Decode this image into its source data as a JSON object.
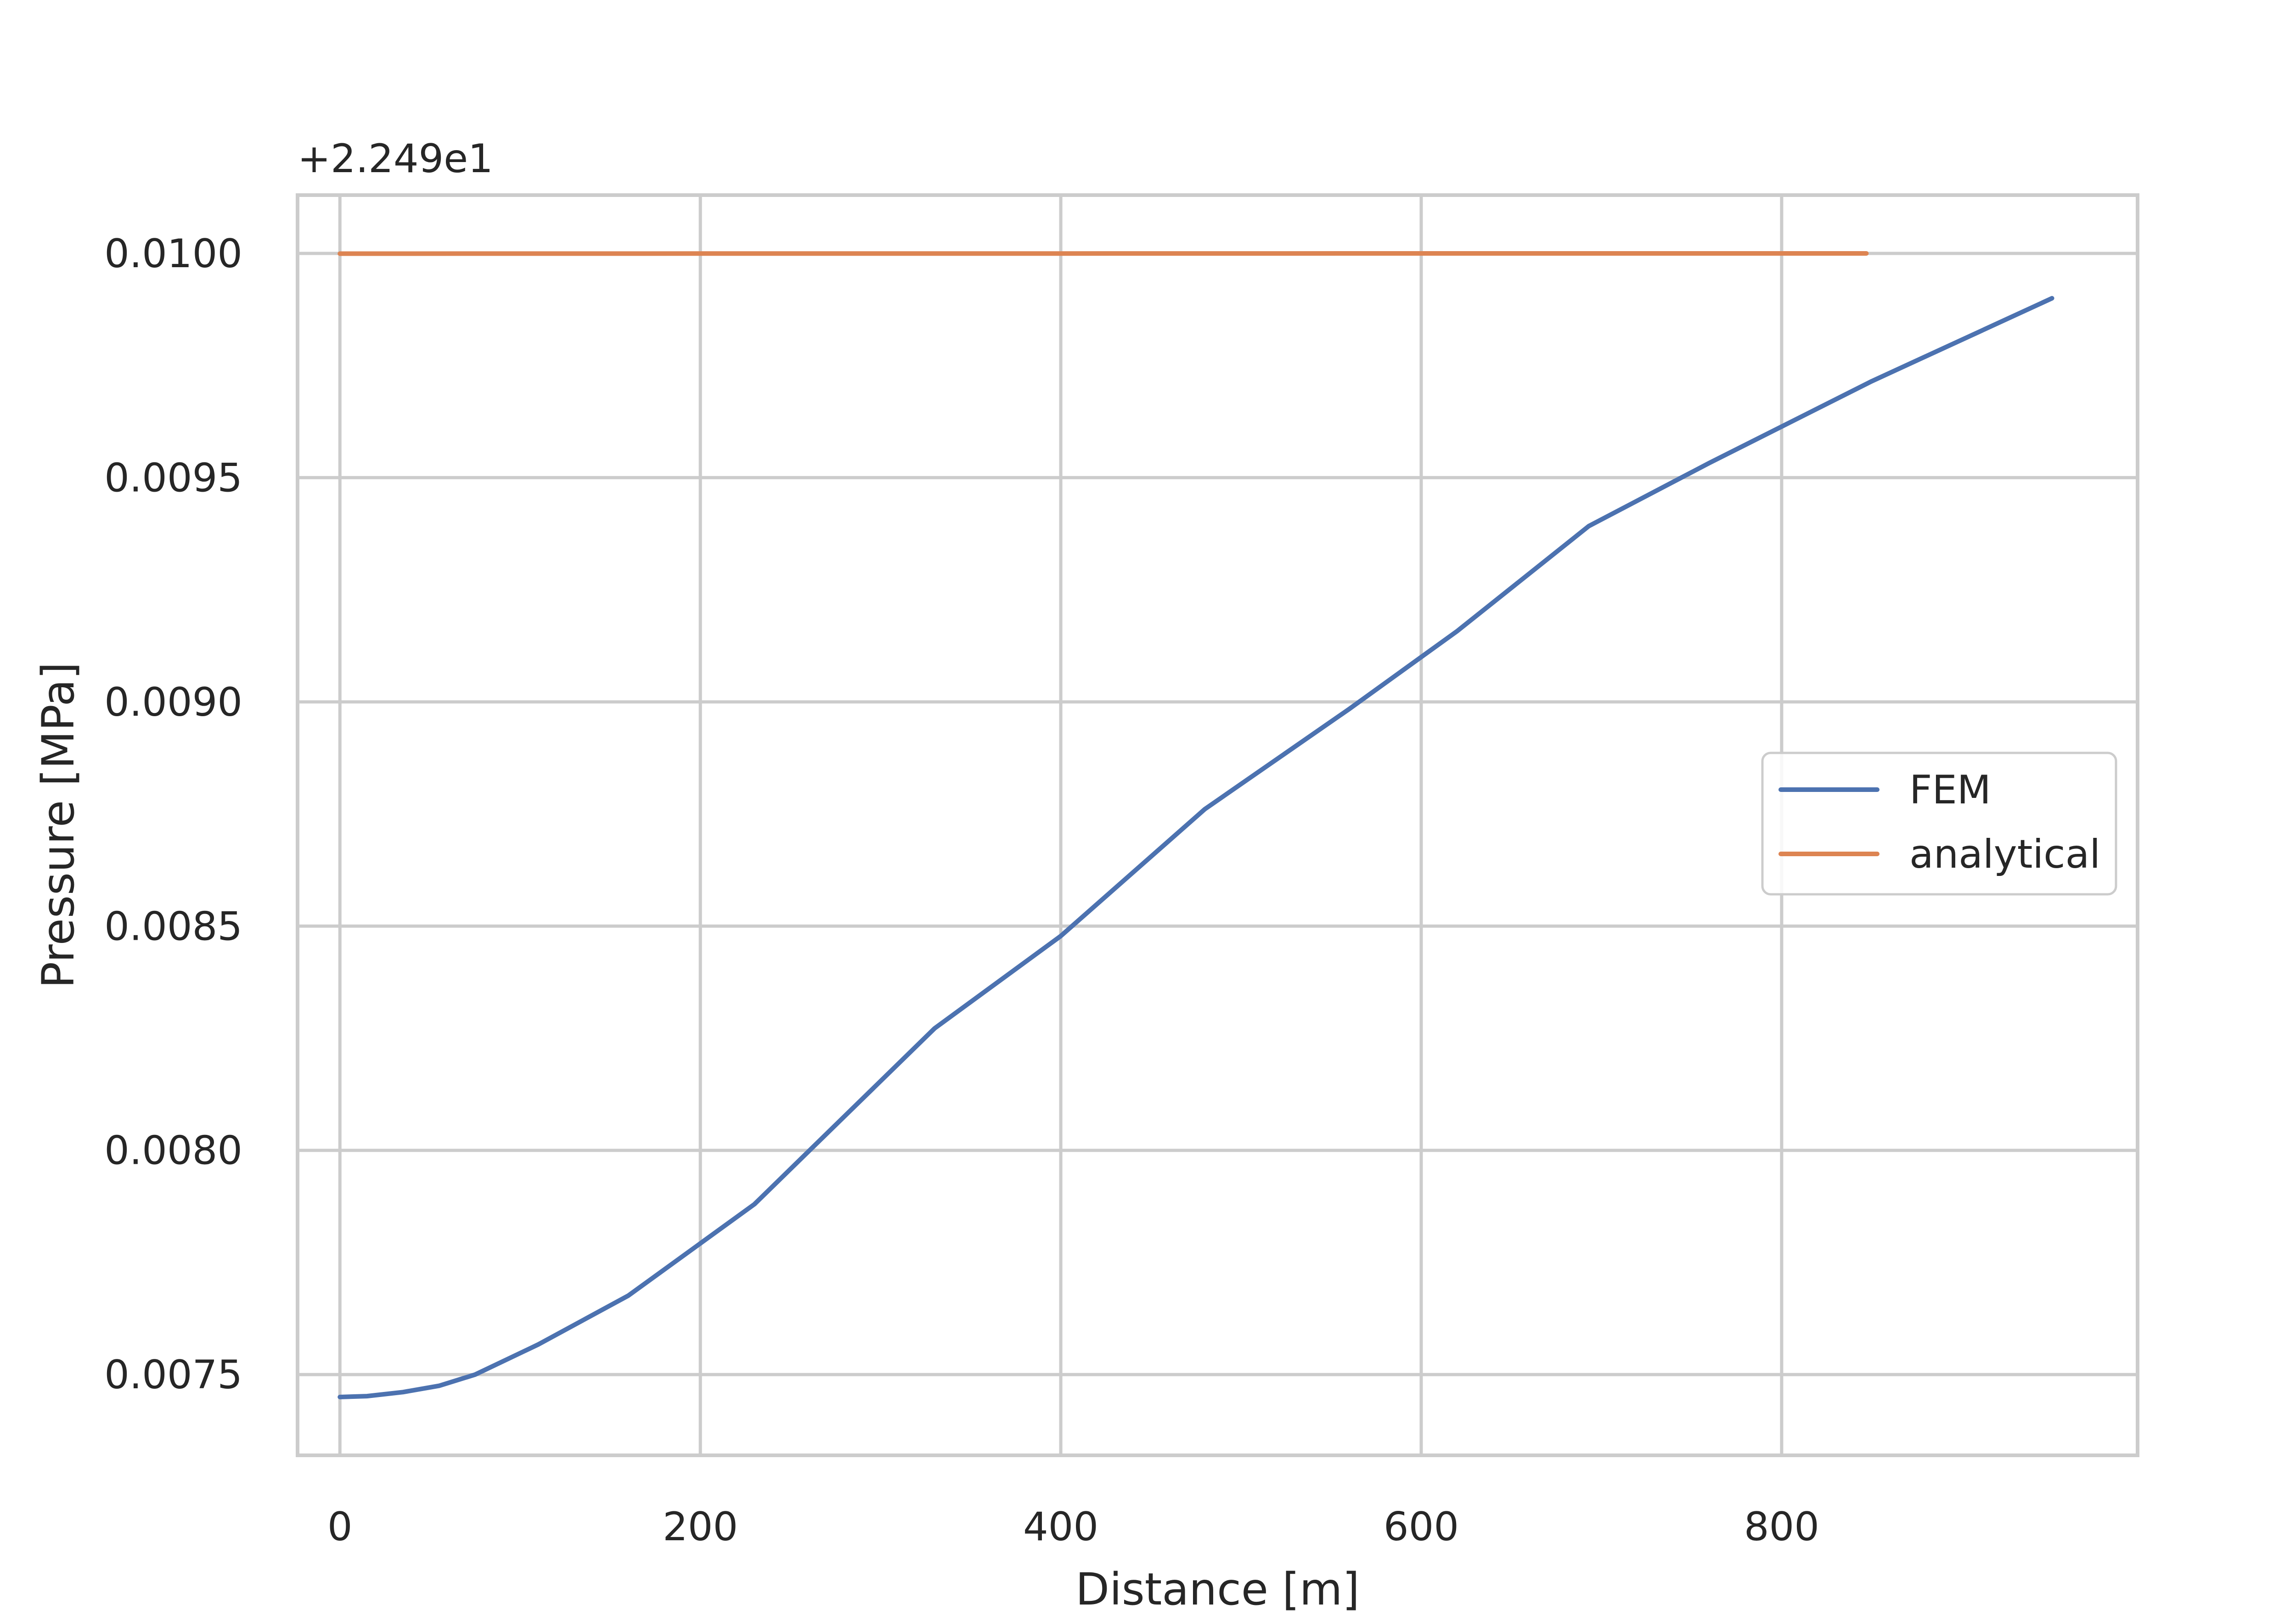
{
  "chart_data": {
    "type": "line",
    "title": "",
    "xlabel": "Distance [m]",
    "ylabel": "Pressure [MPa]",
    "y_offset_text": "+2.249e1",
    "xlim": [
      -23.5,
      997.5
    ],
    "ylim": [
      0.00732,
      0.01013
    ],
    "xticks": [
      0,
      200,
      400,
      600,
      800
    ],
    "xtick_labels": [
      "0",
      "200",
      "400",
      "600",
      "800"
    ],
    "yticks": [
      0.0075,
      0.008,
      0.0085,
      0.009,
      0.0095,
      0.01
    ],
    "ytick_labels": [
      "0.0075",
      "0.0080",
      "0.0085",
      "0.0090",
      "0.0095",
      "0.0100"
    ],
    "grid": true,
    "legend_position": "center-right",
    "series": [
      {
        "name": "FEM",
        "color": "#4c72b0",
        "x": [
          0,
          15,
          35,
          55,
          75,
          110,
          160,
          230,
          330,
          400,
          480,
          560,
          620,
          693,
          760,
          850,
          950
        ],
        "y": [
          0.00745,
          0.007452,
          0.007461,
          0.007475,
          0.0075,
          0.007567,
          0.007676,
          0.00788,
          0.008272,
          0.008478,
          0.008761,
          0.008984,
          0.009158,
          0.009392,
          0.009533,
          0.009715,
          0.0099
        ]
      },
      {
        "name": "analytical",
        "color": "#dd8452",
        "x": [
          0,
          200,
          400,
          600,
          847
        ],
        "y": [
          0.0099995,
          0.0099997,
          0.0099998,
          0.01,
          0.01
        ]
      }
    ]
  }
}
